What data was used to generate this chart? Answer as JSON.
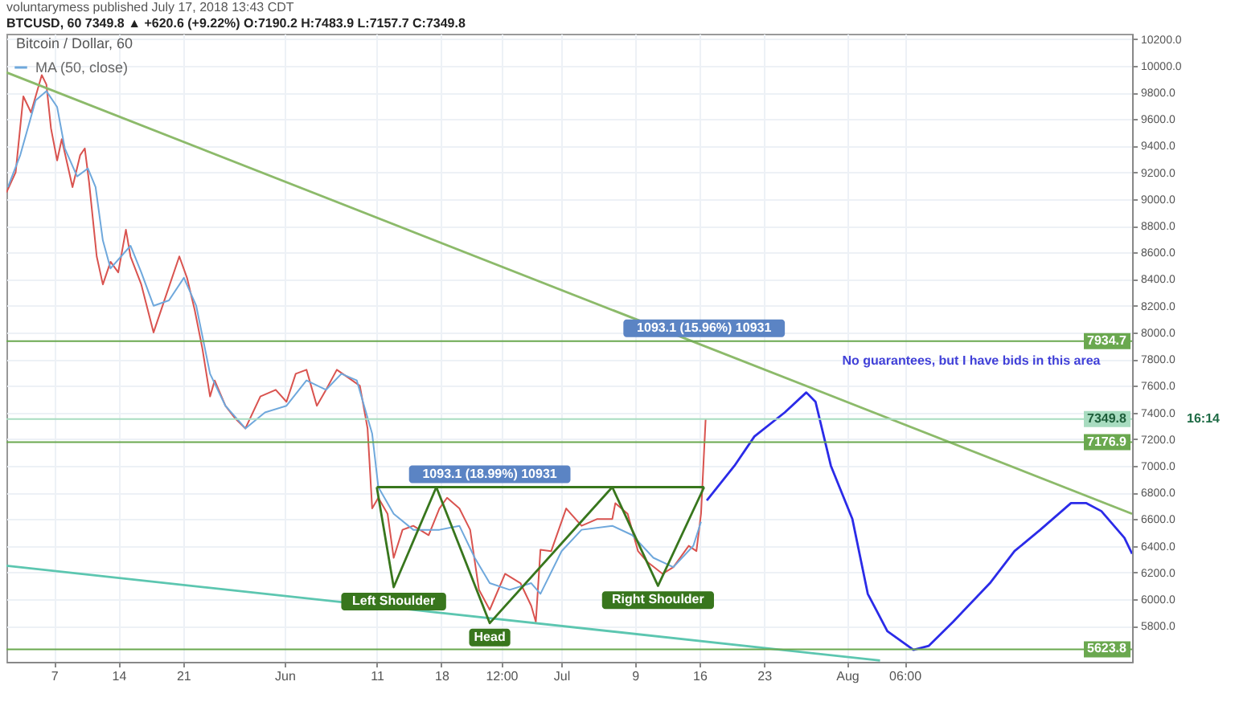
{
  "chart_data": {
    "type": "line",
    "title": "voluntarymess published July 17, 2018 13:43 CDT",
    "subtitle": "BTCUSD, 60  7349.8 ▲ +620.6 (+9.22%) O:7190.2 H:7483.9 L:7157.7 C:7349.8",
    "xlim": [
      "2018-05-01T20:00",
      "2018-08-31T22:00"
    ],
    "xticks": [
      {
        "value": "2018-05-07",
        "label": "7"
      },
      {
        "value": "2018-05-14",
        "label": "14"
      },
      {
        "value": "2018-05-21",
        "label": "21"
      },
      {
        "value": "2018-06-01",
        "label": "Jun"
      },
      {
        "value": "2018-06-11",
        "label": "11"
      },
      {
        "value": "2018-06-18",
        "label": "18"
      },
      {
        "value": "2018-06-24T12:00",
        "label": "12:00"
      },
      {
        "value": "2018-07-01",
        "label": "Jul"
      },
      {
        "value": "2018-07-09",
        "label": "9"
      },
      {
        "value": "2018-07-16",
        "label": "16"
      },
      {
        "value": "2018-07-23",
        "label": "23"
      },
      {
        "value": "2018-08-01",
        "label": "Aug"
      },
      {
        "value": "2018-08-07T06:00",
        "label": "06:00"
      }
    ],
    "ylim": [
      5530,
      10240
    ],
    "yticks": [
      {
        "value": 5800,
        "label": "5800.0"
      },
      {
        "value": 6000,
        "label": "6000.0"
      },
      {
        "value": 6200,
        "label": "6200.0"
      },
      {
        "value": 6400,
        "label": "6400.0"
      },
      {
        "value": 6600,
        "label": "6600.0"
      },
      {
        "value": 6800,
        "label": "6800.0"
      },
      {
        "value": 7000,
        "label": "7000.0"
      },
      {
        "value": 7200,
        "label": "7200.0"
      },
      {
        "value": 7400,
        "label": "7400.0"
      },
      {
        "value": 7600,
        "label": "7600.0"
      },
      {
        "value": 7800,
        "label": "7800.0"
      },
      {
        "value": 8000,
        "label": "8000.0"
      },
      {
        "value": 8200,
        "label": "8200.0"
      },
      {
        "value": 8400,
        "label": "8400.0"
      },
      {
        "value": 8600,
        "label": "8600.0"
      },
      {
        "value": 8800,
        "label": "8800.0"
      },
      {
        "value": 9000,
        "label": "9000.0"
      },
      {
        "value": 9200,
        "label": "9200.0"
      },
      {
        "value": 9400,
        "label": "9400.0"
      },
      {
        "value": 9600,
        "label": "9600.0"
      },
      {
        "value": 9800,
        "label": "9800.0"
      },
      {
        "value": 10000,
        "label": "10000.0"
      },
      {
        "value": 10200,
        "label": "10200.0"
      }
    ],
    "grid": true,
    "legend": "top left",
    "series": [
      {
        "color": "#d9534f",
        "x": [
          "2018-05-01T20:00",
          "2018-05-02T20:00",
          "2018-05-03T16:00",
          "2018-05-04T12:00",
          "2018-05-05T16:00",
          "2018-05-06T04:00",
          "2018-05-06T16:00",
          "2018-05-07T08:00",
          "2018-05-07T20:00",
          "2018-05-09T00:00",
          "2018-05-09T20:00",
          "2018-05-10T08:00",
          "2018-05-10T19:00",
          "2018-05-11T15:00",
          "2018-05-12T07:00",
          "2018-05-13T03:00",
          "2018-05-13T23:00",
          "2018-05-14T19:00",
          "2018-05-15T07:00",
          "2018-05-16T11:00",
          "2018-05-17T19:00",
          "2018-05-18T23:00",
          "2018-05-20T14:00",
          "2018-05-21T10:00",
          "2018-05-22T06:00",
          "2018-05-23T02:00",
          "2018-05-23T22:00",
          "2018-05-24T10:00",
          "2018-05-25T14:00",
          "2018-05-26T14:00",
          "2018-05-27T18:00",
          "2018-05-29T09:00",
          "2018-05-31T01:00",
          "2018-06-01T05:00",
          "2018-06-02T05:00",
          "2018-06-03T09:00",
          "2018-06-04T12:00",
          "2018-06-05T12:00",
          "2018-06-06T16:00",
          "2018-06-08T08:00",
          "2018-06-09T04:00",
          "2018-06-10T00:00",
          "2018-06-10T12:00",
          "2018-06-11T04:00",
          "2018-06-12T04:00",
          "2018-06-12T20:00",
          "2018-06-13T19:00",
          "2018-06-14T23:00",
          "2018-06-16T15:00",
          "2018-06-17T19:00",
          "2018-06-18T15:00",
          "2018-06-19T23:00",
          "2018-06-21T03:00",
          "2018-06-22T02:00",
          "2018-06-23T06:00",
          "2018-06-24T22:00",
          "2018-06-26T14:00",
          "2018-06-27T18:00",
          "2018-06-28T06:00",
          "2018-06-28T18:00",
          "2018-06-29T22:00",
          "2018-07-01T13:00",
          "2018-07-03T05:00",
          "2018-07-04T21:00",
          "2018-07-06T13:00",
          "2018-07-06T21:00",
          "2018-07-08T05:00",
          "2018-07-09T08:00",
          "2018-07-10T08:00",
          "2018-07-12T00:00",
          "2018-07-13T04:00",
          "2018-07-14T20:00",
          "2018-07-15T16:00",
          "2018-07-16T04:00",
          "2018-07-16T16:00"
        ],
        "values": [
          9050,
          9200,
          9770,
          9650,
          9930,
          9860,
          9530,
          9290,
          9450,
          9090,
          9330,
          9380,
          9130,
          8570,
          8360,
          8530,
          8450,
          8770,
          8570,
          8360,
          8000,
          8240,
          8570,
          8410,
          8170,
          7880,
          7520,
          7640,
          7450,
          7360,
          7280,
          7520,
          7570,
          7480,
          7690,
          7720,
          7450,
          7570,
          7720,
          7640,
          7600,
          7280,
          6680,
          6760,
          6640,
          6310,
          6520,
          6550,
          6480,
          6680,
          6760,
          6680,
          6520,
          6070,
          5920,
          6190,
          6120,
          5950,
          5830,
          6370,
          6360,
          6680,
          6550,
          6600,
          6600,
          6720,
          6640,
          6360,
          6280,
          6190,
          6240,
          6400,
          6360,
          6640,
          7349.8
        ]
      },
      {
        "name": "MA (50, close)",
        "color": "#6fa8dc",
        "x": [
          "2018-05-02T00:00",
          "2018-05-03T08:00",
          "2018-05-05T00:00",
          "2018-05-06T04:00",
          "2018-05-07T08:00",
          "2018-05-08T04:00",
          "2018-05-09T12:00",
          "2018-05-10T16:00",
          "2018-05-11T12:00",
          "2018-05-12T07:00",
          "2018-05-13T03:00",
          "2018-05-15T07:00",
          "2018-05-16T11:00",
          "2018-05-17T19:00",
          "2018-05-19T11:00",
          "2018-05-21T02:00",
          "2018-05-22T10:00",
          "2018-05-23T22:00",
          "2018-05-25T14:00",
          "2018-05-27T18:00",
          "2018-05-29T21:00",
          "2018-06-01T05:00",
          "2018-06-03T09:00",
          "2018-06-05T12:00",
          "2018-06-07T04:00",
          "2018-06-08T20:00",
          "2018-06-10T12:00",
          "2018-06-11T04:00",
          "2018-06-12T20:00",
          "2018-06-14T23:00",
          "2018-06-17T19:00",
          "2018-06-19T23:00",
          "2018-06-21T15:00",
          "2018-06-23T06:00",
          "2018-06-25T10:00",
          "2018-06-27T18:00",
          "2018-06-28T18:00",
          "2018-07-01T01:00",
          "2018-07-03T05:00",
          "2018-07-06T13:00",
          "2018-07-08T17:00",
          "2018-07-11T00:00",
          "2018-07-13T04:00",
          "2018-07-15T08:00",
          "2018-07-16T04:00"
        ],
        "values": [
          9090,
          9330,
          9740,
          9810,
          9690,
          9380,
          9170,
          9230,
          9090,
          8690,
          8480,
          8650,
          8450,
          8200,
          8240,
          8410,
          8200,
          7690,
          7450,
          7280,
          7400,
          7450,
          7640,
          7570,
          7690,
          7640,
          7240,
          6840,
          6640,
          6520,
          6520,
          6550,
          6310,
          6120,
          6070,
          6120,
          6040,
          6360,
          6520,
          6550,
          6480,
          6310,
          6240,
          6400,
          6580
        ]
      },
      {
        "color": "#2b2be8",
        "x": [
          "2018-07-16T19:00",
          "2018-07-19T19:00",
          "2018-07-21T23:00",
          "2018-07-25T06:00",
          "2018-07-27T14:00",
          "2018-07-28T14:00",
          "2018-07-30T06:00",
          "2018-08-01T14:00",
          "2018-08-03T06:00",
          "2018-08-05T09:00",
          "2018-08-08T05:00",
          "2018-08-09T21:00",
          "2018-08-12T12:00",
          "2018-08-16T12:00",
          "2018-08-19T04:00",
          "2018-08-21T23:00",
          "2018-08-25T07:00",
          "2018-08-26T23:00",
          "2018-08-28T14:00",
          "2018-08-31T02:00",
          "2018-08-31T22:00"
        ],
        "values": [
          6740,
          7000,
          7220,
          7400,
          7550,
          7480,
          7000,
          6600,
          6040,
          5760,
          5620,
          5650,
          5830,
          6120,
          6360,
          6520,
          6720,
          6720,
          6660,
          6460,
          6340
        ]
      },
      {
        "color": "#8cba6a",
        "x": [
          "2018-05-01T20:00",
          "2018-08-31T22:00"
        ],
        "values": [
          9950,
          6640
        ]
      },
      {
        "color": "#5cc6b0",
        "x": [
          "2018-05-01T20:00",
          "2018-08-04T14:00"
        ],
        "values": [
          6250,
          5540
        ]
      },
      {
        "color": "#38761d",
        "x": [
          "2018-06-11T00:00",
          "2018-06-12T20:00",
          "2018-06-17T11:00",
          "2018-06-23T06:00",
          "2018-07-06T13:00",
          "2018-07-11T12:00",
          "2018-07-16T12:00"
        ],
        "values": [
          6840,
          6090,
          6840,
          5820,
          6840,
          6100,
          6840
        ]
      },
      {
        "color": "#38761d",
        "x": [
          "2018-06-11T00:00",
          "2018-07-16T12:00"
        ],
        "values": [
          6840,
          6840
        ]
      }
    ],
    "ref_lines": [
      {
        "axis": "y",
        "value": 7934.7,
        "label": "7934.7",
        "color": "#6aa84f"
      },
      {
        "axis": "y",
        "value": 7349.8,
        "label": "7349.8",
        "color": "#a8dcc0"
      },
      {
        "axis": "y",
        "value": 7176.9,
        "label": "7176.9",
        "color": "#6aa84f"
      },
      {
        "axis": "y",
        "value": 5623.8,
        "label": "5623.8",
        "color": "#6aa84f"
      }
    ],
    "annotations": [
      "Bitcoin / Dollar, 60",
      {
        "text": "1093.1 (18.99%) 10931",
        "x": "2018-06-23T06:00",
        "y": 6840
      },
      {
        "text": "1093.1 (15.96%) 10931",
        "x": "2018-07-16T12:00",
        "y": 7934.7
      },
      {
        "text": "Left Shoulder",
        "x": "2018-06-12T20:00",
        "y": 6090
      },
      {
        "text": "Head",
        "x": "2018-06-23T06:00",
        "y": 5820
      },
      {
        "text": "Right Shoulder",
        "x": "2018-07-11T12:00",
        "y": 6100
      },
      "No guarantees, but I have bids in this area",
      "16:14"
    ]
  }
}
